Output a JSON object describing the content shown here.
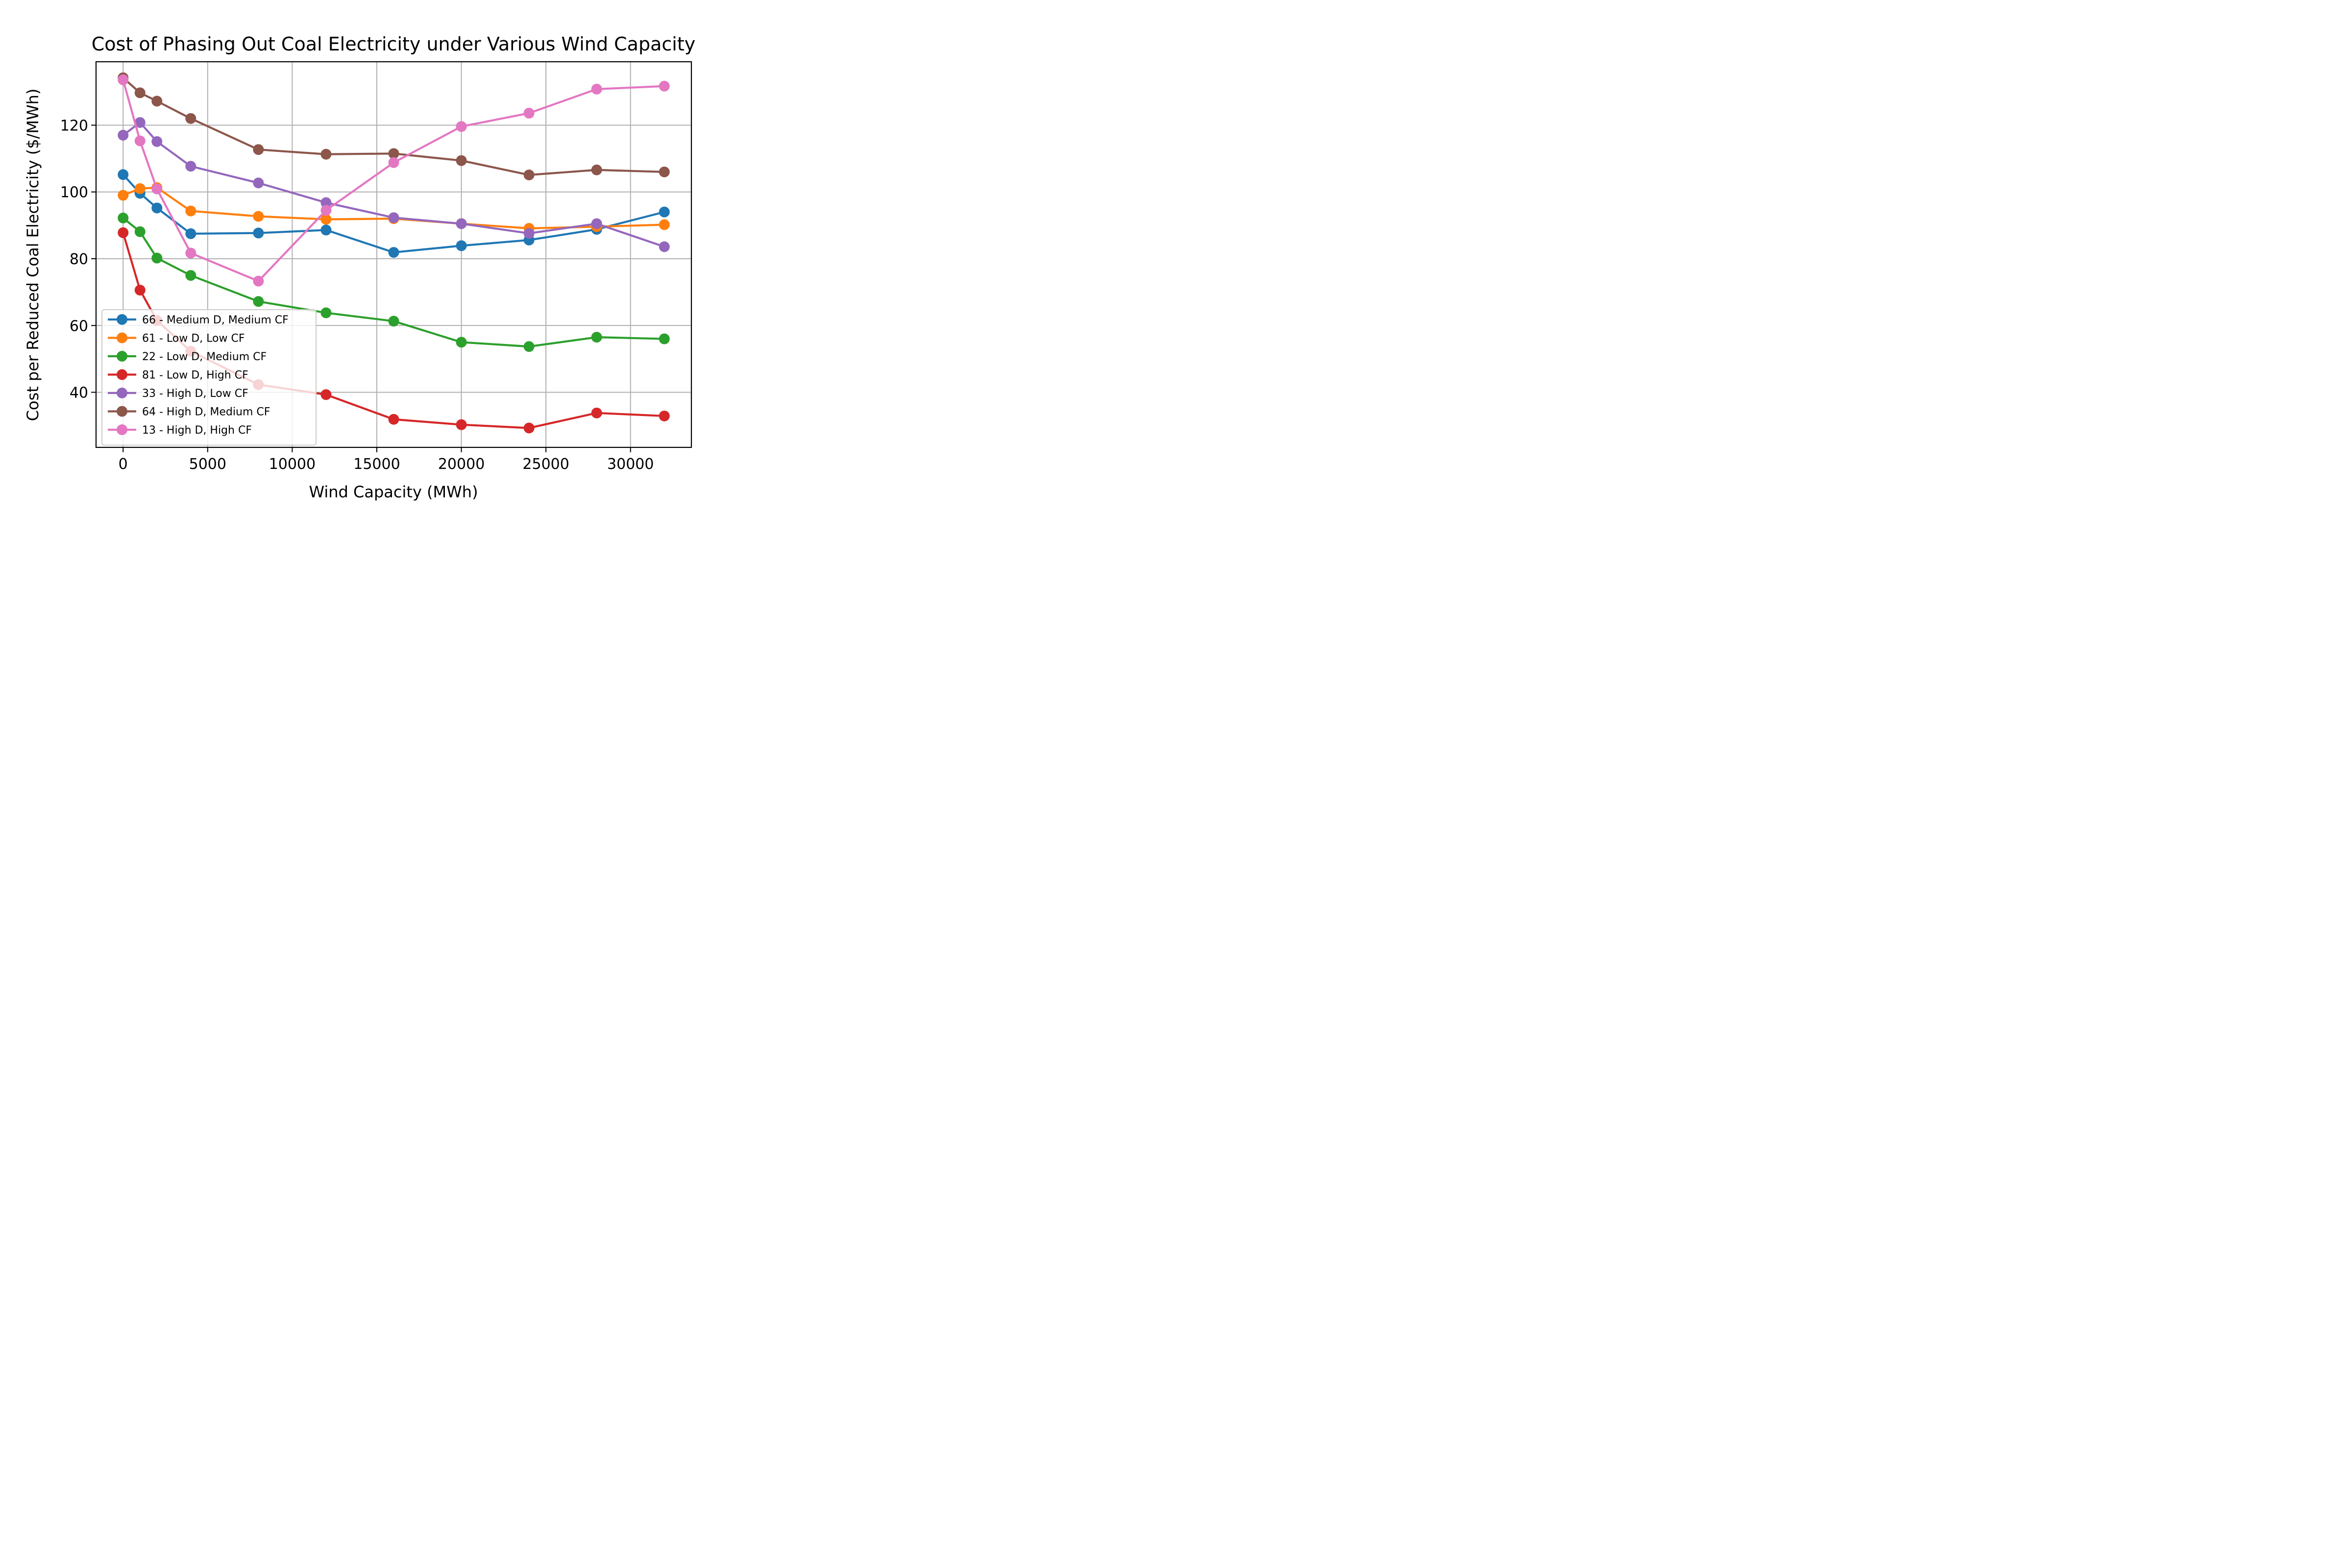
{
  "chart_data": {
    "type": "line",
    "title": "Cost of Phasing Out Coal Electricity under Various Wind Capacity",
    "xlabel": "Wind Capacity (MWh)",
    "ylabel": "Cost per Reduced Coal Electricity ($/MWh)",
    "xlim": [
      -1600,
      33600
    ],
    "ylim": [
      23.5,
      139
    ],
    "x_ticks": [
      0,
      5000,
      10000,
      15000,
      20000,
      25000,
      30000
    ],
    "y_ticks": [
      40,
      60,
      80,
      100,
      120
    ],
    "grid": true,
    "legend_position": "lower-left",
    "x": [
      0,
      1000,
      2000,
      4000,
      8000,
      12000,
      16000,
      20000,
      24000,
      28000,
      32000
    ],
    "series": [
      {
        "name": "66 - Medium D, Medium CF",
        "color": "#1f77b4",
        "values": [
          105.2,
          99.6,
          95.2,
          87.5,
          87.7,
          88.6,
          81.9,
          83.9,
          85.6,
          88.8,
          94.0
        ]
      },
      {
        "name": "61 - Low D, Low CF",
        "color": "#ff7f0e",
        "values": [
          99.0,
          101.0,
          101.3,
          94.3,
          92.7,
          91.8,
          92.0,
          90.5,
          89.1,
          89.6,
          90.2
        ]
      },
      {
        "name": "22 - Low D, Medium CF",
        "color": "#2ca02c",
        "values": [
          92.2,
          88.1,
          80.2,
          75.0,
          67.2,
          63.8,
          61.3,
          55.0,
          53.7,
          56.5,
          56.0
        ]
      },
      {
        "name": "81 - Low D, High CF",
        "color": "#d62728",
        "values": [
          87.8,
          70.6,
          61.5,
          52.3,
          42.3,
          39.3,
          31.9,
          30.3,
          29.3,
          33.8,
          32.9
        ]
      },
      {
        "name": "33 - High D, Low CF",
        "color": "#9467bd",
        "values": [
          117.0,
          120.8,
          115.1,
          107.7,
          102.7,
          96.8,
          92.3,
          90.5,
          87.6,
          90.5,
          83.6
        ]
      },
      {
        "name": "64 - High D, Medium CF",
        "color": "#8c564b",
        "values": [
          134.2,
          129.7,
          127.2,
          122.0,
          112.7,
          111.3,
          111.5,
          109.4,
          105.1,
          106.6,
          106.0
        ]
      },
      {
        "name": "13 - High D, High CF",
        "color": "#e377c2",
        "values": [
          133.6,
          115.3,
          100.9,
          81.7,
          73.3,
          94.5,
          108.8,
          119.6,
          123.6,
          130.8,
          131.7
        ]
      }
    ]
  }
}
